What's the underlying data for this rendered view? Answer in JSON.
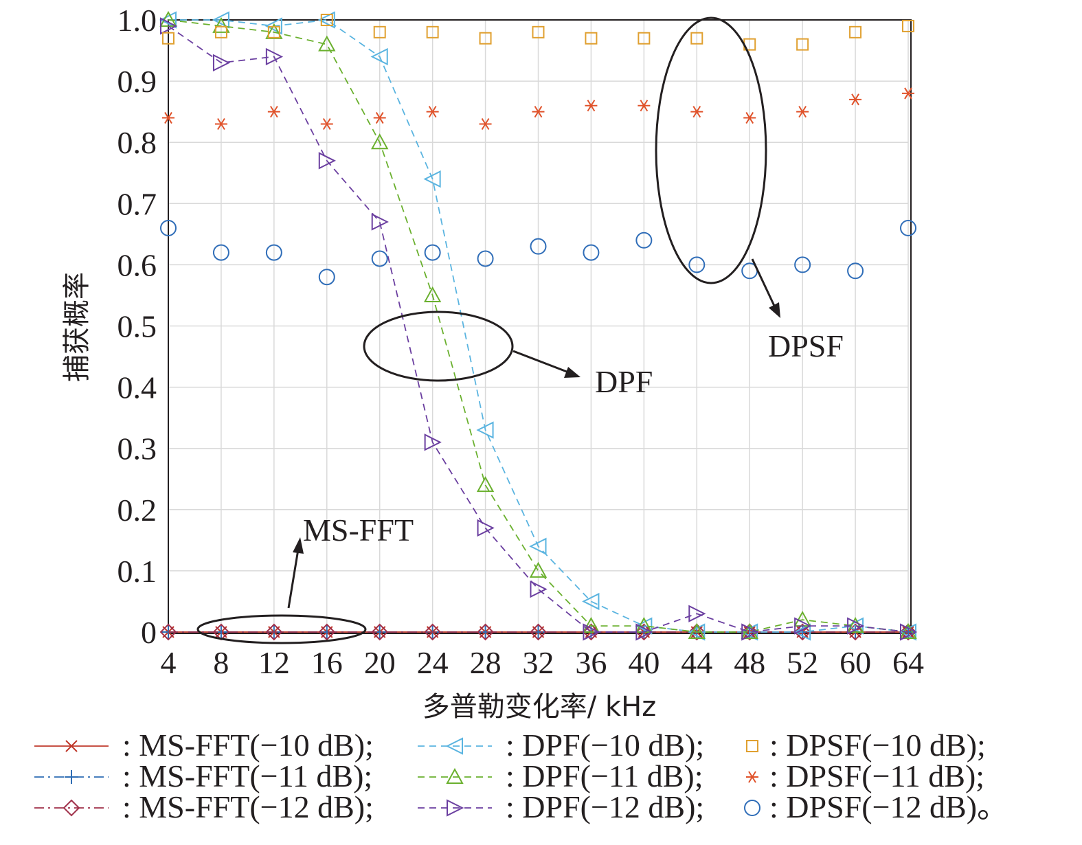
{
  "chart_data": {
    "type": "line",
    "title": "",
    "xlabel": "多普勒变化率/ kHz",
    "ylabel": "捕获概率",
    "categories": [
      "4",
      "8",
      "12",
      "16",
      "20",
      "24",
      "28",
      "32",
      "36",
      "40",
      "44",
      "48",
      "52",
      "60",
      "64"
    ],
    "yticks": [
      "0",
      "0.1",
      "0.2",
      "0.3",
      "0.4",
      "0.5",
      "0.6",
      "0.7",
      "0.8",
      "0.9",
      "1.0"
    ],
    "ylim": [
      0,
      1.0
    ],
    "grid": true,
    "series": [
      {
        "id": "msfft10",
        "name": ": MS-FFT(−10 dB);",
        "color": "#c0392b",
        "marker": "x",
        "line": "solid",
        "values": [
          0,
          0,
          0,
          0,
          0,
          0,
          0,
          0,
          0,
          0,
          0,
          0,
          0,
          0,
          0
        ]
      },
      {
        "id": "msfft11",
        "name": ": MS-FFT(−11 dB);",
        "color": "#2e6db4",
        "marker": "plus",
        "line": "dashdot",
        "values": [
          0,
          0,
          0,
          0,
          0,
          0,
          0,
          0,
          0,
          0,
          0,
          0,
          0,
          0,
          0
        ]
      },
      {
        "id": "msfft12",
        "name": ": MS-FFT(−12 dB);",
        "color": "#a0304a",
        "marker": "diamond",
        "line": "dashdot",
        "values": [
          0,
          0,
          0,
          0,
          0,
          0,
          0,
          0,
          0,
          0,
          0,
          0,
          0,
          0,
          0
        ]
      },
      {
        "id": "dpf10",
        "name": ": DPF(−10 dB);",
        "color": "#5ab4e0",
        "marker": "triangle-left",
        "line": "dashed",
        "values": [
          1.0,
          1.0,
          0.99,
          1.0,
          0.94,
          0.74,
          0.33,
          0.14,
          0.05,
          0.01,
          0,
          0,
          0,
          0.01,
          0
        ]
      },
      {
        "id": "dpf11",
        "name": ": DPF(−11 dB);",
        "color": "#6ab02e",
        "marker": "triangle-up",
        "line": "dashed",
        "values": [
          1.0,
          0.99,
          0.98,
          0.96,
          0.8,
          0.55,
          0.24,
          0.1,
          0.01,
          0.01,
          0,
          0,
          0.02,
          0.01,
          0
        ]
      },
      {
        "id": "dpf12",
        "name": ": DPF(−12 dB);",
        "color": "#6b3fa0",
        "marker": "triangle-right",
        "line": "dashed",
        "values": [
          0.99,
          0.93,
          0.94,
          0.77,
          0.67,
          0.31,
          0.17,
          0.07,
          0,
          0,
          0.03,
          0,
          0.01,
          0.01,
          0
        ]
      },
      {
        "id": "dpsf10",
        "name": ": DPSF(−10 dB);",
        "color": "#e0a030",
        "marker": "square",
        "line": "none",
        "values": [
          0.97,
          0.98,
          0.98,
          1.0,
          0.98,
          0.98,
          0.97,
          0.98,
          0.97,
          0.97,
          0.97,
          0.96,
          0.96,
          0.98,
          0.99
        ]
      },
      {
        "id": "dpsf11",
        "name": ": DPSF(−11 dB);",
        "color": "#e0522a",
        "marker": "asterisk",
        "line": "none",
        "values": [
          0.84,
          0.83,
          0.85,
          0.83,
          0.84,
          0.85,
          0.83,
          0.85,
          0.86,
          0.86,
          0.85,
          0.84,
          0.85,
          0.87,
          0.88
        ]
      },
      {
        "id": "dpsf12",
        "name": ": DPSF(−12 dB)。",
        "color": "#2f6db8",
        "marker": "circle",
        "line": "none",
        "values": [
          0.66,
          0.62,
          0.62,
          0.58,
          0.61,
          0.62,
          0.61,
          0.63,
          0.62,
          0.64,
          0.6,
          0.59,
          0.6,
          0.59,
          0.66
        ]
      }
    ],
    "annotations": [
      {
        "id": "msfft",
        "text": "MS-FFT"
      },
      {
        "id": "dpf",
        "text": "DPF"
      },
      {
        "id": "dpsf",
        "text": "DPSF"
      }
    ]
  }
}
